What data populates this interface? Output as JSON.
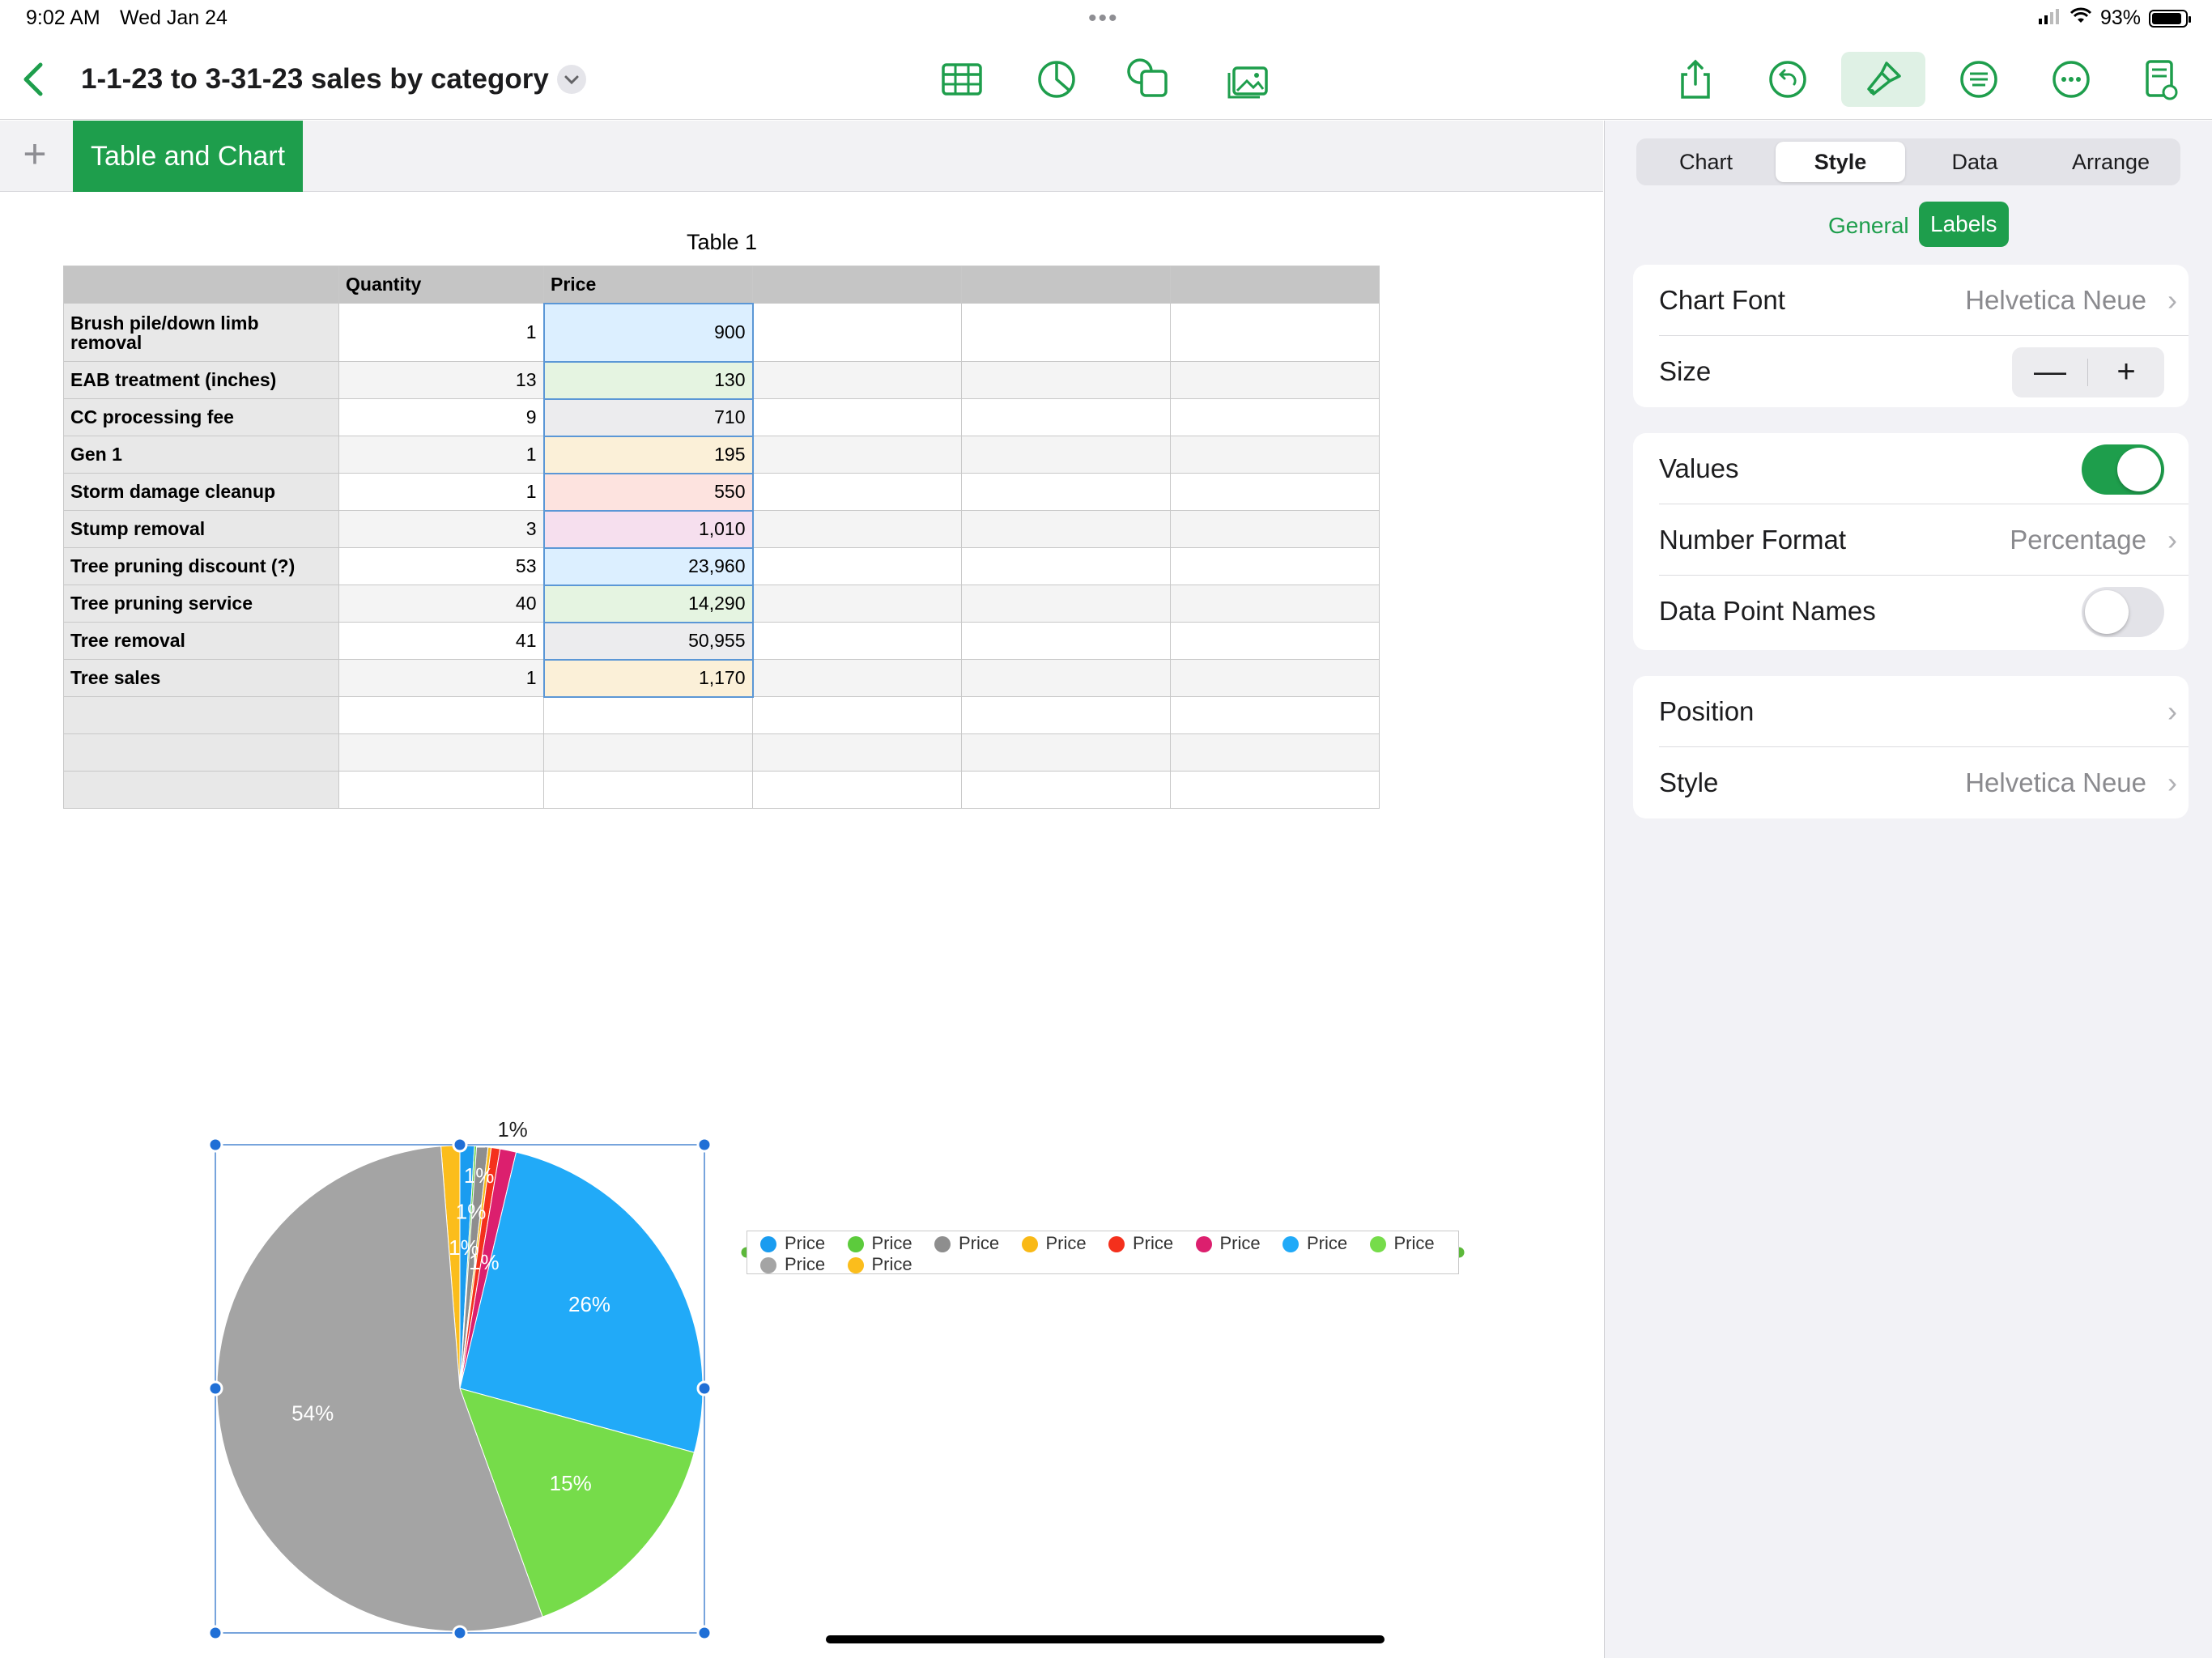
{
  "status": {
    "time": "9:02 AM",
    "date": "Wed Jan 24",
    "battery": "93%"
  },
  "toolbar": {
    "title": "1-1-23 to 3-31-23 sales by category",
    "icons": [
      "table-icon",
      "chart-icon",
      "shape-icon",
      "media-icon",
      "share-icon",
      "undo-icon",
      "format-brush-icon",
      "collaborate-icon",
      "more-icon",
      "document-icon"
    ]
  },
  "sheet": {
    "add_label": "+",
    "tab_label": "Table and Chart"
  },
  "table": {
    "title": "Table 1",
    "headers": [
      "",
      "Quantity",
      "Price",
      "",
      "",
      ""
    ],
    "rows": [
      {
        "name": "Brush pile/down limb removal",
        "quantity": "1",
        "price": "900",
        "color": "#dcefff"
      },
      {
        "name": "EAB treatment (inches)",
        "quantity": "13",
        "price": "130",
        "color": "#e5f4e1"
      },
      {
        "name": "CC processing fee",
        "quantity": "9",
        "price": "710",
        "color": "#ececee"
      },
      {
        "name": "Gen 1",
        "quantity": "1",
        "price": "195",
        "color": "#fbf0d8"
      },
      {
        "name": "Storm damage cleanup",
        "quantity": "1",
        "price": "550",
        "color": "#fde3df"
      },
      {
        "name": "Stump removal",
        "quantity": "3",
        "price": "1,010",
        "color": "#f6dfee"
      },
      {
        "name": "Tree pruning discount (?)",
        "quantity": "53",
        "price": "23,960",
        "color": "#dcefff"
      },
      {
        "name": "Tree pruning service",
        "quantity": "40",
        "price": "14,290",
        "color": "#e5f4e1"
      },
      {
        "name": "Tree removal",
        "quantity": "41",
        "price": "50,955",
        "color": "#ececee"
      },
      {
        "name": "Tree sales",
        "quantity": "1",
        "price": "1,170",
        "color": "#fbf0d8"
      }
    ]
  },
  "chart_data": {
    "type": "pie",
    "series": [
      {
        "name": "Price",
        "values": [
          900,
          130,
          710,
          195,
          550,
          1010,
          23960,
          14290,
          50955,
          1170
        ]
      }
    ],
    "categories": [
      "Brush pile/down limb removal",
      "EAB treatment (inches)",
      "CC processing fee",
      "Gen 1",
      "Storm damage cleanup",
      "Stump removal",
      "Tree pruning discount (?)",
      "Tree pruning service",
      "Tree removal",
      "Tree sales"
    ],
    "colors": [
      "#1a9cf0",
      "#5ccb3c",
      "#8e8e8e",
      "#f9b916",
      "#f4301c",
      "#dc1f6e",
      "#21aaf8",
      "#76dc4a",
      "#a4a4a4",
      "#fbbd1c"
    ],
    "slice_labels": [
      "1%",
      "1%",
      "1%",
      "1%",
      "1%",
      "1%",
      "26%",
      "15%",
      "54%",
      "1%"
    ],
    "legend": [
      "Price",
      "Price",
      "Price",
      "Price",
      "Price",
      "Price",
      "Price",
      "Price",
      "Price",
      "Price"
    ],
    "legend_position": "right"
  },
  "inspector": {
    "tabs": [
      "Chart",
      "Style",
      "Data",
      "Arrange"
    ],
    "active_tab": "Style",
    "subtabs": {
      "general": "General",
      "labels": "Labels"
    },
    "chart_font_label": "Chart Font",
    "chart_font_value": "Helvetica Neue",
    "size_label": "Size",
    "size_minus": "—",
    "size_plus": "+",
    "values_label": "Values",
    "values_on": true,
    "number_format_label": "Number Format",
    "number_format_value": "Percentage",
    "data_point_names_label": "Data Point Names",
    "data_point_names_on": false,
    "position_label": "Position",
    "style_label": "Style",
    "style_value": "Helvetica Neue"
  }
}
